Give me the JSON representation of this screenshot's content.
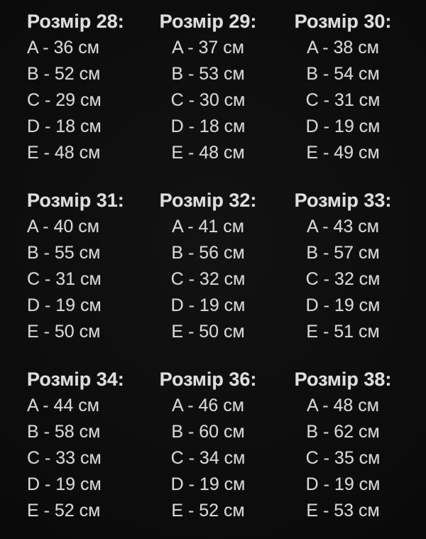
{
  "page": {
    "background_color": "#0a0a0a",
    "title_text_color": "#dedede",
    "row_text_color": "#d6d6d6"
  },
  "size_chart": {
    "separator": " - ",
    "unit": "см",
    "blocks": [
      {
        "title": "Розмір 28:",
        "size": "28",
        "rows": [
          {
            "label": "A",
            "value": "36"
          },
          {
            "label": "B",
            "value": "52"
          },
          {
            "label": "C",
            "value": "29"
          },
          {
            "label": "D",
            "value": "18"
          },
          {
            "label": "E",
            "value": "48"
          }
        ]
      },
      {
        "title": "Розмір 29:",
        "size": "29",
        "rows": [
          {
            "label": "A",
            "value": "37"
          },
          {
            "label": "B",
            "value": "53"
          },
          {
            "label": "C",
            "value": "30"
          },
          {
            "label": "D",
            "value": "18"
          },
          {
            "label": "E",
            "value": "48"
          }
        ]
      },
      {
        "title": "Розмір 30:",
        "size": "30",
        "rows": [
          {
            "label": "A",
            "value": "38"
          },
          {
            "label": "B",
            "value": "54"
          },
          {
            "label": "C",
            "value": "31"
          },
          {
            "label": "D",
            "value": "19"
          },
          {
            "label": "E",
            "value": "49"
          }
        ]
      },
      {
        "title": "Розмір 31:",
        "size": "31",
        "rows": [
          {
            "label": "A",
            "value": "40"
          },
          {
            "label": "B",
            "value": "55"
          },
          {
            "label": "C",
            "value": "31"
          },
          {
            "label": "D",
            "value": "19"
          },
          {
            "label": "E",
            "value": "50"
          }
        ]
      },
      {
        "title": "Розмір 32:",
        "size": "32",
        "rows": [
          {
            "label": "A",
            "value": "41"
          },
          {
            "label": "B",
            "value": "56"
          },
          {
            "label": "C",
            "value": "32"
          },
          {
            "label": "D",
            "value": "19"
          },
          {
            "label": "E",
            "value": "50"
          }
        ]
      },
      {
        "title": "Розмір 33:",
        "size": "33",
        "rows": [
          {
            "label": "A",
            "value": "43"
          },
          {
            "label": "B",
            "value": "57"
          },
          {
            "label": "C",
            "value": "32"
          },
          {
            "label": "D",
            "value": "19"
          },
          {
            "label": "E",
            "value": "51"
          }
        ]
      },
      {
        "title": "Розмір 34:",
        "size": "34",
        "rows": [
          {
            "label": "A",
            "value": "44"
          },
          {
            "label": "B",
            "value": "58"
          },
          {
            "label": "C",
            "value": "33"
          },
          {
            "label": "D",
            "value": "19"
          },
          {
            "label": "E",
            "value": "52"
          }
        ]
      },
      {
        "title": "Розмір 36:",
        "size": "36",
        "rows": [
          {
            "label": "A",
            "value": "46"
          },
          {
            "label": "B",
            "value": "60"
          },
          {
            "label": "C",
            "value": "34"
          },
          {
            "label": "D",
            "value": "19"
          },
          {
            "label": "E",
            "value": "52"
          }
        ]
      },
      {
        "title": "Розмір 38:",
        "size": "38",
        "rows": [
          {
            "label": "A",
            "value": "48"
          },
          {
            "label": "B",
            "value": "62"
          },
          {
            "label": "C",
            "value": "35"
          },
          {
            "label": "D",
            "value": "19"
          },
          {
            "label": "E",
            "value": "53"
          }
        ]
      }
    ]
  }
}
